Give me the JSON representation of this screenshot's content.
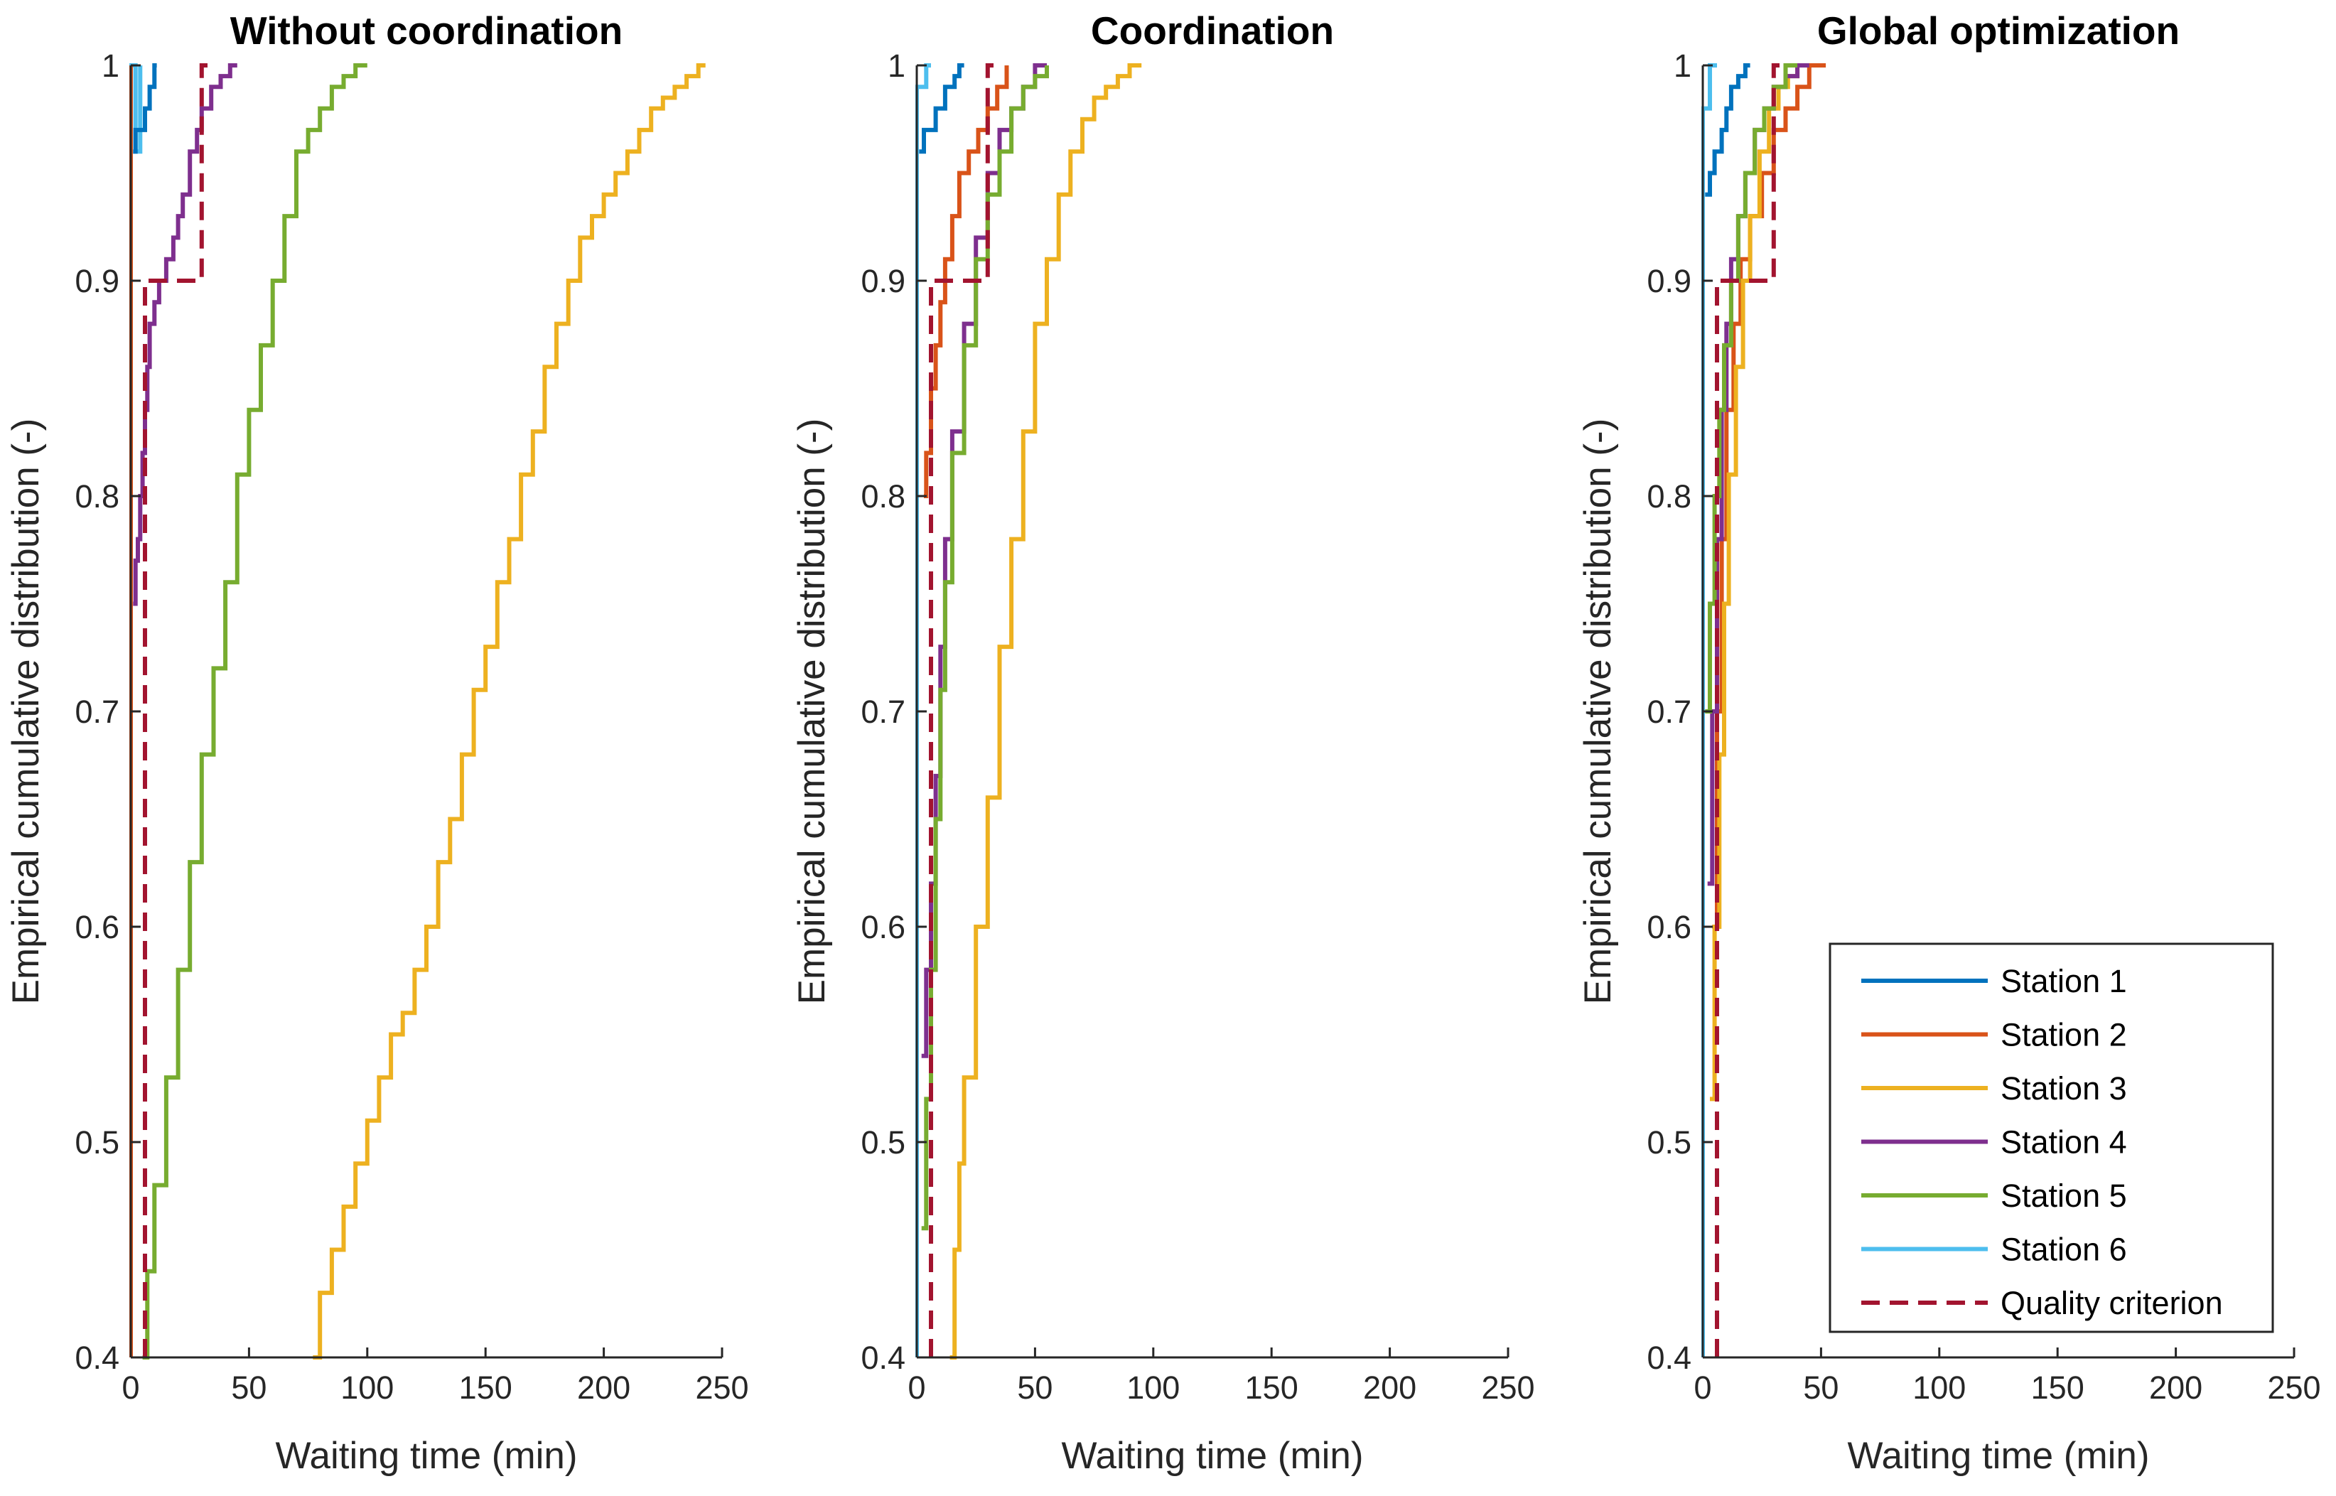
{
  "chart_data": {
    "type": "line",
    "subplots": [
      {
        "title": "Without coordination",
        "xlabel": "Waiting time (min)",
        "ylabel": "Empirical cumulative distribution (-)",
        "xlim": [
          0,
          250
        ],
        "ylim": [
          0.4,
          1
        ],
        "xticks": [
          0,
          50,
          100,
          150,
          200,
          250
        ],
        "xtick_labels": [
          "0",
          "50",
          "100",
          "150",
          "200",
          "250"
        ],
        "yticks": [
          0.4,
          0.5,
          0.6,
          0.7,
          0.8,
          0.9,
          1
        ],
        "ytick_labels": [
          "0.4",
          "0.5",
          "0.6",
          "0.7",
          "0.8",
          "0.9",
          "1"
        ],
        "series": [
          {
            "name": "Station 6",
            "x": [
              0,
              0,
              2,
              2,
              4,
              4
            ],
            "y": [
              0.4,
              1,
              1,
              0.96,
              0.96,
              1
            ]
          },
          {
            "name": "Station 1",
            "x": [
              1,
              2,
              2,
              5,
              6,
              8,
              8,
              10,
              10,
              11
            ],
            "y": [
              0.96,
              0.96,
              0.97,
              0.97,
              0.98,
              0.98,
              0.99,
              0.99,
              1,
              1
            ]
          },
          {
            "name": "Station 2",
            "x": [
              0,
              0
            ],
            "y": [
              0.4,
              1
            ]
          },
          {
            "name": "Station 3",
            "x": [
              77,
              80,
              85,
              90,
              95,
              100,
              105,
              110,
              115,
              120,
              125,
              130,
              135,
              140,
              145,
              150,
              155,
              160,
              165,
              170,
              175,
              180,
              185,
              190,
              195,
              200,
              205,
              210,
              215,
              220,
              225,
              230,
              235,
              240,
              243
            ],
            "y": [
              0.4,
              0.43,
              0.45,
              0.47,
              0.49,
              0.51,
              0.53,
              0.55,
              0.56,
              0.58,
              0.6,
              0.63,
              0.65,
              0.68,
              0.71,
              0.73,
              0.76,
              0.78,
              0.81,
              0.83,
              0.86,
              0.88,
              0.9,
              0.92,
              0.93,
              0.94,
              0.95,
              0.96,
              0.97,
              0.98,
              0.985,
              0.99,
              0.995,
              1,
              1
            ]
          },
          {
            "name": "Station 4",
            "x": [
              1,
              2,
              3,
              4,
              5,
              6,
              7,
              8,
              10,
              12,
              15,
              18,
              20,
              22,
              25,
              28,
              30,
              34,
              38,
              42,
              45
            ],
            "y": [
              0.75,
              0.77,
              0.78,
              0.8,
              0.82,
              0.84,
              0.86,
              0.88,
              0.89,
              0.9,
              0.91,
              0.92,
              0.93,
              0.94,
              0.96,
              0.97,
              0.98,
              0.99,
              0.995,
              1,
              1
            ]
          },
          {
            "name": "Station 5",
            "x": [
              5,
              7,
              10,
              15,
              20,
              25,
              30,
              35,
              40,
              45,
              50,
              55,
              60,
              65,
              70,
              75,
              80,
              85,
              90,
              95,
              100
            ],
            "y": [
              0.4,
              0.44,
              0.48,
              0.53,
              0.58,
              0.63,
              0.68,
              0.72,
              0.76,
              0.81,
              0.84,
              0.87,
              0.9,
              0.93,
              0.96,
              0.97,
              0.98,
              0.99,
              0.995,
              1,
              1
            ]
          },
          {
            "name": "Quality criterion",
            "x": [
              6,
              6,
              10,
              30,
              30,
              33
            ],
            "y": [
              0.4,
              0.9,
              0.9,
              0.9,
              1,
              1
            ]
          }
        ]
      },
      {
        "title": "Coordination",
        "xlabel": "Waiting time (min)",
        "ylabel": "Empirical cumulative distribution (-)",
        "xlim": [
          0,
          250
        ],
        "ylim": [
          0.4,
          1
        ],
        "xticks": [
          0,
          50,
          100,
          150,
          200,
          250
        ],
        "xtick_labels": [
          "0",
          "50",
          "100",
          "150",
          "200",
          "250"
        ],
        "yticks": [
          0.4,
          0.5,
          0.6,
          0.7,
          0.8,
          0.9,
          1
        ],
        "ytick_labels": [
          "0.4",
          "0.5",
          "0.6",
          "0.7",
          "0.8",
          "0.9",
          "1"
        ],
        "series": [
          {
            "name": "Station 6",
            "x": [
              0,
              0,
              4,
              4,
              6,
              6
            ],
            "y": [
              0.4,
              0.99,
              0.99,
              1,
              1,
              1
            ]
          },
          {
            "name": "Station 1",
            "x": [
              1,
              3,
              5,
              8,
              10,
              12,
              14,
              16,
              18,
              20
            ],
            "y": [
              0.96,
              0.97,
              0.97,
              0.98,
              0.98,
              0.99,
              0.99,
              0.995,
              1,
              1
            ]
          },
          {
            "name": "Station 2",
            "x": [
              3,
              4,
              6,
              8,
              10,
              12,
              15,
              18,
              22,
              26,
              30,
              34,
              38
            ],
            "y": [
              0.8,
              0.82,
              0.85,
              0.87,
              0.89,
              0.91,
              0.93,
              0.95,
              0.96,
              0.97,
              0.98,
              0.99,
              1
            ]
          },
          {
            "name": "Station 3",
            "x": [
              14,
              16,
              18,
              20,
              25,
              30,
              35,
              40,
              45,
              50,
              55,
              60,
              65,
              70,
              75,
              80,
              85,
              90,
              95
            ],
            "y": [
              0.4,
              0.45,
              0.49,
              0.53,
              0.6,
              0.66,
              0.73,
              0.78,
              0.83,
              0.88,
              0.91,
              0.94,
              0.96,
              0.975,
              0.985,
              0.99,
              0.995,
              1,
              1
            ]
          },
          {
            "name": "Station 4",
            "x": [
              2,
              4,
              6,
              8,
              10,
              12,
              15,
              20,
              25,
              30,
              35,
              40,
              45,
              50,
              55
            ],
            "y": [
              0.54,
              0.58,
              0.62,
              0.67,
              0.73,
              0.78,
              0.83,
              0.88,
              0.92,
              0.95,
              0.97,
              0.98,
              0.99,
              1,
              1
            ]
          },
          {
            "name": "Station 5",
            "x": [
              2,
              4,
              6,
              8,
              10,
              12,
              15,
              20,
              25,
              30,
              35,
              40,
              45,
              50,
              55
            ],
            "y": [
              0.46,
              0.52,
              0.58,
              0.65,
              0.71,
              0.76,
              0.82,
              0.87,
              0.91,
              0.94,
              0.96,
              0.98,
              0.99,
              0.995,
              1
            ]
          },
          {
            "name": "Quality criterion",
            "x": [
              6,
              6,
              10,
              30,
              30,
              33
            ],
            "y": [
              0.4,
              0.9,
              0.9,
              0.9,
              1,
              1
            ]
          }
        ]
      },
      {
        "title": "Global optimization",
        "xlabel": "Waiting time (min)",
        "ylabel": "Empirical cumulative distribution (-)",
        "xlim": [
          0,
          250
        ],
        "ylim": [
          0.4,
          1
        ],
        "xticks": [
          0,
          50,
          100,
          150,
          200,
          250
        ],
        "xtick_labels": [
          "0",
          "50",
          "100",
          "150",
          "200",
          "250"
        ],
        "yticks": [
          0.4,
          0.5,
          0.6,
          0.7,
          0.8,
          0.9,
          1
        ],
        "ytick_labels": [
          "0.4",
          "0.5",
          "0.6",
          "0.7",
          "0.8",
          "0.9",
          "1"
        ],
        "series": [
          {
            "name": "Station 6",
            "x": [
              0,
              0,
              3,
              3,
              6,
              6
            ],
            "y": [
              0.4,
              0.98,
              0.98,
              1,
              1,
              1
            ]
          },
          {
            "name": "Station 1",
            "x": [
              1,
              3,
              5,
              8,
              10,
              12,
              15,
              18,
              20
            ],
            "y": [
              0.94,
              0.95,
              0.96,
              0.97,
              0.98,
              0.99,
              0.995,
              1,
              1
            ]
          },
          {
            "name": "Station 2",
            "x": [
              4,
              6,
              8,
              10,
              13,
              16,
              20,
              25,
              30,
              35,
              40,
              45,
              52
            ],
            "y": [
              0.6,
              0.7,
              0.78,
              0.84,
              0.88,
              0.91,
              0.93,
              0.95,
              0.97,
              0.98,
              0.99,
              1,
              1
            ]
          },
          {
            "name": "Station 3",
            "x": [
              3,
              5,
              7,
              9,
              11,
              14,
              17,
              20,
              24,
              28,
              32,
              36,
              40
            ],
            "y": [
              0.52,
              0.6,
              0.68,
              0.75,
              0.81,
              0.86,
              0.9,
              0.93,
              0.96,
              0.98,
              0.99,
              0.995,
              1
            ]
          },
          {
            "name": "Station 4",
            "x": [
              2,
              4,
              6,
              8,
              10,
              12,
              15,
              18,
              22,
              26,
              30,
              35,
              40,
              45
            ],
            "y": [
              0.62,
              0.7,
              0.78,
              0.84,
              0.88,
              0.91,
              0.93,
              0.95,
              0.97,
              0.98,
              0.99,
              0.995,
              1,
              1
            ]
          },
          {
            "name": "Station 5",
            "x": [
              1,
              3,
              5,
              7,
              9,
              12,
              15,
              18,
              22,
              26,
              30,
              35,
              40
            ],
            "y": [
              0.7,
              0.75,
              0.8,
              0.84,
              0.87,
              0.9,
              0.93,
              0.95,
              0.97,
              0.98,
              0.99,
              1,
              1
            ]
          },
          {
            "name": "Quality criterion",
            "x": [
              6,
              6,
              10,
              30,
              30,
              33
            ],
            "y": [
              0.4,
              0.9,
              0.9,
              0.9,
              1,
              1
            ]
          }
        ]
      }
    ],
    "legend": {
      "placement": "bottom-right of third panel",
      "entries": [
        "Station 1",
        "Station 2",
        "Station 3",
        "Station 4",
        "Station 5",
        "Station 6",
        "Quality criterion"
      ]
    },
    "colors": {
      "Station 1": "#0072BD",
      "Station 2": "#D95319",
      "Station 3": "#EDB120",
      "Station 4": "#7E2F8E",
      "Station 5": "#77AC30",
      "Station 6": "#4DBEEE",
      "Quality criterion": "#A2142F"
    }
  }
}
